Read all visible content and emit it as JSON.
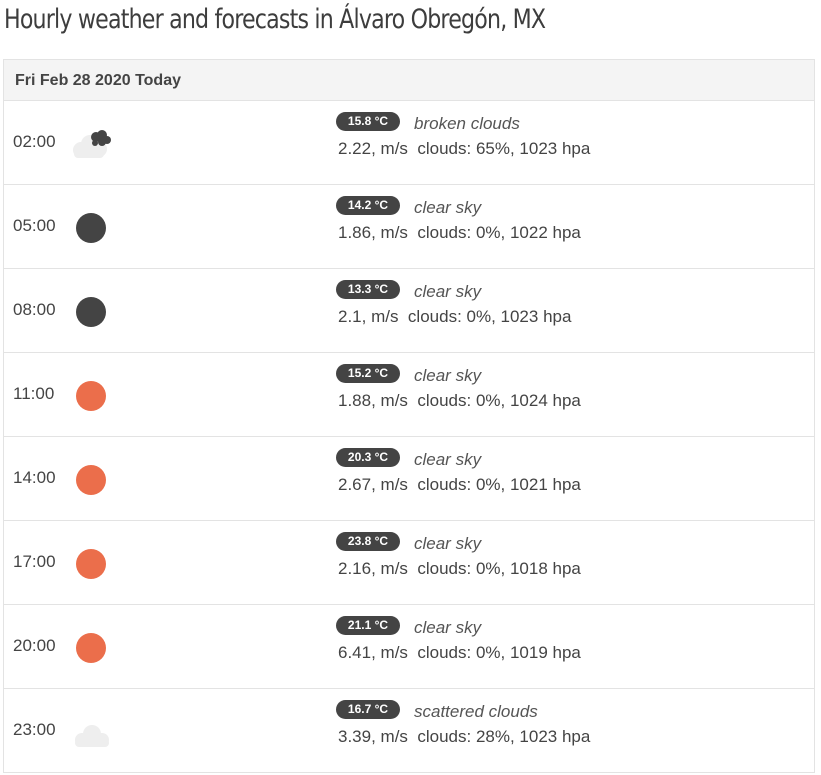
{
  "page": {
    "title": "Hourly weather and forecasts in Álvaro Obregón, MX"
  },
  "day": {
    "header": "Fri Feb 28 2020 Today"
  },
  "colors": {
    "sun_day": "#EB6E4B",
    "moon_night": "#444444",
    "cloud": "#eeeeee",
    "badge_bg": "#444444"
  },
  "hours": [
    {
      "time": "02:00",
      "icon": "broken-clouds-night-icon",
      "temp": "15.8 °C",
      "description": "broken clouds",
      "wind": "2.22, m/s",
      "clouds": "clouds: 65%, 1023 hpa"
    },
    {
      "time": "05:00",
      "icon": "clear-sky-night-icon",
      "temp": "14.2 °C",
      "description": "clear sky",
      "wind": "1.86, m/s",
      "clouds": "clouds: 0%, 1022 hpa"
    },
    {
      "time": "08:00",
      "icon": "clear-sky-night-icon",
      "temp": "13.3 °C",
      "description": "clear sky",
      "wind": "2.1, m/s",
      "clouds": "clouds: 0%, 1023 hpa"
    },
    {
      "time": "11:00",
      "icon": "clear-sky-day-icon",
      "temp": "15.2 °C",
      "description": "clear sky",
      "wind": "1.88, m/s",
      "clouds": "clouds: 0%, 1024 hpa"
    },
    {
      "time": "14:00",
      "icon": "clear-sky-day-icon",
      "temp": "20.3 °C",
      "description": "clear sky",
      "wind": "2.67, m/s",
      "clouds": "clouds: 0%, 1021 hpa"
    },
    {
      "time": "17:00",
      "icon": "clear-sky-day-icon",
      "temp": "23.8 °C",
      "description": "clear sky",
      "wind": "2.16, m/s",
      "clouds": "clouds: 0%, 1018 hpa"
    },
    {
      "time": "20:00",
      "icon": "clear-sky-day-icon",
      "temp": "21.1 °C",
      "description": "clear sky",
      "wind": "6.41, m/s",
      "clouds": "clouds: 0%, 1019 hpa"
    },
    {
      "time": "23:00",
      "icon": "scattered-clouds-icon",
      "temp": "16.7 °C",
      "description": "scattered clouds",
      "wind": "3.39, m/s",
      "clouds": "clouds: 28%, 1023 hpa"
    }
  ]
}
